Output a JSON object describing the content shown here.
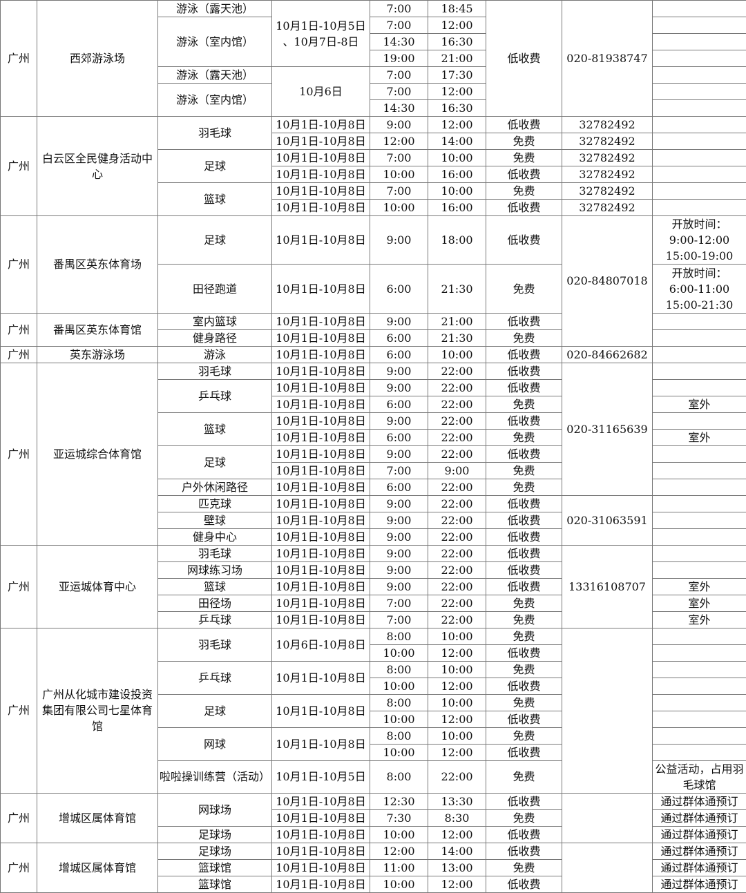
{
  "table": {
    "rows": [
      [
        [
          "广州",
          7
        ],
        [
          "西郊游泳场",
          7
        ],
        "游泳（露天池）",
        [
          "10月1日-10月5日\n、10月7日-8日",
          4
        ],
        "7:00",
        "18:45",
        [
          "低收费",
          7
        ],
        [
          "020-81938747",
          7
        ],
        ""
      ],
      [
        [
          "游泳（室内馆）",
          3
        ],
        "7:00",
        "12:00",
        ""
      ],
      [
        "14:30",
        "16:30",
        ""
      ],
      [
        "19:00",
        "21:00",
        ""
      ],
      [
        "游泳（露天池）",
        [
          "10月6日",
          3
        ],
        "7:00",
        "17:30",
        ""
      ],
      [
        [
          "游泳（室内馆）",
          2
        ],
        "7:00",
        "12:00",
        ""
      ],
      [
        "14:30",
        "16:30",
        ""
      ],
      [
        [
          "广州",
          6
        ],
        [
          "白云区全民健身活动中心",
          6
        ],
        [
          "羽毛球",
          2
        ],
        "10月1日-10月8日",
        "9:00",
        "12:00",
        "低收费",
        "32782492",
        ""
      ],
      [
        "10月1日-10月8日",
        "12:00",
        "14:00",
        "免费",
        "32782492",
        ""
      ],
      [
        [
          "足球",
          2
        ],
        "10月1日-10月8日",
        "7:00",
        "10:00",
        "免费",
        "32782492",
        ""
      ],
      [
        "10月1日-10月8日",
        "10:00",
        "16:00",
        "低收费",
        "32782492",
        ""
      ],
      [
        [
          "篮球",
          2
        ],
        "10月1日-10月8日",
        "7:00",
        "10:00",
        "免费",
        "32782492",
        ""
      ],
      [
        "10月1日-10月8日",
        "10:00",
        "16:00",
        "低收费",
        "32782492",
        ""
      ],
      [
        [
          "广州",
          6
        ],
        [
          "番禺区英东体育场",
          6
        ],
        [
          "足球",
          3
        ],
        [
          "10月1日-10月8日",
          3
        ],
        [
          "9:00",
          3
        ],
        [
          "18:00",
          3
        ],
        [
          "低收费",
          3
        ],
        [
          "020-84807018",
          8
        ],
        [
          "开放时间：\n9:00-12:00\n15:00-19:00",
          3
        ]
      ],
      [],
      [],
      [
        [
          "田径跑道",
          3
        ],
        [
          "10月1日-10月8日",
          3
        ],
        [
          "6:00",
          3
        ],
        [
          "21:30",
          3
        ],
        [
          "免费",
          3
        ],
        [
          "开放时间：\n6:00-11:00\n15:00-21:30",
          3
        ]
      ],
      [],
      [],
      [
        [
          "广州",
          2
        ],
        [
          "番禺区英东体育馆",
          2
        ],
        "室内篮球",
        "10月1日-10月8日",
        "9:00",
        "21:00",
        "低收费",
        ""
      ],
      [
        "健身路径",
        "10月1日-10月8日",
        "6:00",
        "21:30",
        "免费",
        ""
      ],
      [
        "广州",
        "英东游泳场",
        "游泳",
        "10月1日-10月8日",
        "6:00",
        "10:00",
        "低收费",
        "020-84662682",
        ""
      ],
      [
        [
          "广州",
          11
        ],
        [
          "亚运城综合体育馆",
          11
        ],
        "羽毛球",
        "10月1日-10月8日",
        "9:00",
        "22:00",
        "低收费",
        [
          "020-31165639",
          8
        ],
        ""
      ],
      [
        [
          "乒乓球",
          2
        ],
        "10月1日-10月8日",
        "9:00",
        "22:00",
        "低收费",
        ""
      ],
      [
        "10月1日-10月8日",
        "6:00",
        "22:00",
        "免费",
        "室外"
      ],
      [
        [
          "篮球",
          2
        ],
        "10月1日-10月8日",
        "9:00",
        "22:00",
        "低收费",
        ""
      ],
      [
        "10月1日-10月8日",
        "6:00",
        "22:00",
        "免费",
        "室外"
      ],
      [
        [
          "足球",
          2
        ],
        "10月1日-10月8日",
        "9:00",
        "22:00",
        "低收费",
        ""
      ],
      [
        "10月1日-10月8日",
        "7:00",
        "9:00",
        "免费",
        ""
      ],
      [
        "户外休闲路径",
        "10月1日-10月8日",
        "6:00",
        "22:00",
        "免费",
        ""
      ],
      [
        "匹克球",
        "10月1日-10月8日",
        "9:00",
        "22:00",
        "低收费",
        [
          "020-31063591",
          3
        ],
        ""
      ],
      [
        "壁球",
        "10月1日-10月8日",
        "9:00",
        "22:00",
        "低收费",
        ""
      ],
      [
        "健身中心",
        "10月1日-10月8日",
        "9:00",
        "22:00",
        "低收费",
        ""
      ],
      [
        [
          "广州",
          5
        ],
        [
          "亚运城体育中心",
          5
        ],
        "羽毛球",
        "10月1日-10月8日",
        "9:00",
        "22:00",
        "低收费",
        [
          "13316108707",
          5
        ],
        ""
      ],
      [
        "网球练习场",
        "10月1日-10月8日",
        "9:00",
        "22:00",
        "低收费",
        ""
      ],
      [
        "篮球",
        "10月1日-10月8日",
        "9:00",
        "22:00",
        "低收费",
        "室外"
      ],
      [
        "田径场",
        "10月1日-10月8日",
        "7:00",
        "22:00",
        "免费",
        "室外"
      ],
      [
        "乒乓球",
        "10月1日-10月8日",
        "7:00",
        "22:00",
        "免费",
        "室外"
      ],
      [
        [
          "广州",
          10
        ],
        [
          "广州从化城市建设投资集团有限公司七星体育馆",
          10
        ],
        [
          "羽毛球",
          2
        ],
        [
          "10月6日-10月8日",
          2
        ],
        "8:00",
        "10:00",
        "免费",
        [
          "",
          10
        ],
        ""
      ],
      [
        "10:00",
        "12:00",
        "低收费",
        ""
      ],
      [
        [
          "乒乓球",
          2
        ],
        [
          "10月1日-10月8日",
          2
        ],
        "8:00",
        "10:00",
        "免费",
        ""
      ],
      [
        "10:00",
        "12:00",
        "低收费",
        ""
      ],
      [
        [
          "足球",
          2
        ],
        [
          "10月1日-10月8日",
          2
        ],
        "8:00",
        "10:00",
        "免费",
        ""
      ],
      [
        "10:00",
        "12:00",
        "低收费",
        ""
      ],
      [
        [
          "网球",
          2
        ],
        [
          "10月1日-10月8日",
          2
        ],
        "8:00",
        "10:00",
        "免费",
        ""
      ],
      [
        "10:00",
        "12:00",
        "低收费",
        ""
      ],
      [
        [
          "啦啦操训练营（活动）",
          2
        ],
        [
          "10月1日-10月5日",
          2
        ],
        [
          "8:00",
          2
        ],
        [
          "22:00",
          2
        ],
        [
          "免费",
          2
        ],
        [
          "公益活动，占用羽毛球馆",
          2
        ]
      ],
      [],
      [
        [
          "广州",
          3
        ],
        [
          "增城区属体育馆",
          3
        ],
        [
          "网球场",
          2
        ],
        "10月1日-10月8日",
        "12:30",
        "13:30",
        "低收费",
        [
          "",
          3
        ],
        "通过群体通预订"
      ],
      [
        "10月1日-10月8日",
        "7:30",
        "8:30",
        "免费",
        "通过群体通预订"
      ],
      [
        "足球场",
        "10月1日-10月8日",
        "10:00",
        "12:00",
        "低收费",
        "通过群体通预订"
      ],
      [
        [
          "广州",
          3
        ],
        [
          "增城区属体育馆",
          3
        ],
        "足球场",
        "10月1日-10月8日",
        "12:00",
        "14:00",
        "低收费",
        [
          "",
          3
        ],
        "通过群体通预订"
      ],
      [
        "篮球馆",
        "10月1日-10月8日",
        "11:00",
        "13:00",
        "免费",
        "通过群体通预订"
      ],
      [
        "篮球馆",
        "10月1日-10月8日",
        "10:00",
        "12:00",
        "低收费",
        "通过群体通预订"
      ]
    ]
  }
}
